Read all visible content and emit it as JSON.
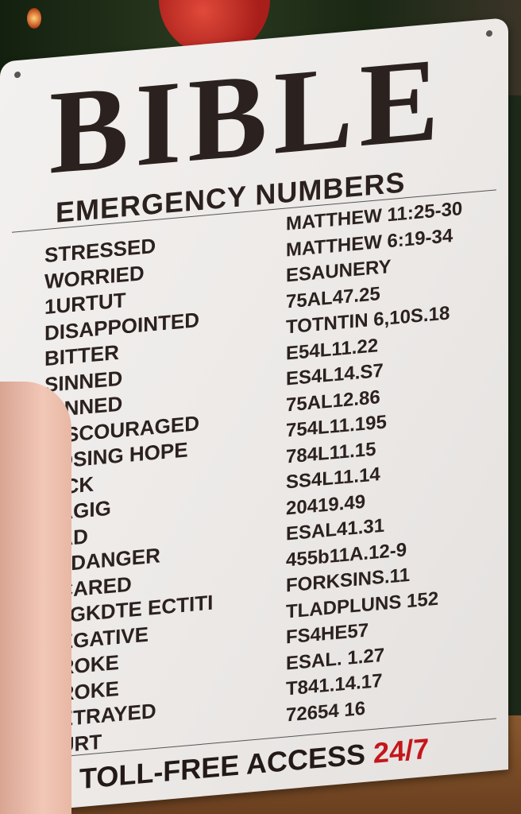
{
  "sign": {
    "title": "BIBLE",
    "subtitle": "EMERGENCY NUMBERS",
    "feelings": [
      "STRESSED",
      "WORRIED",
      "1URTUT",
      "DISAPPOINTED",
      "BITTER",
      "SINNED",
      "SINNED",
      "DISCOURAGED",
      "LOSING HOPE",
      "SICK",
      "SAGIG",
      "SAD",
      "IN DANGER",
      "SCARED",
      "I EGKDTE ECTITI",
      "NEGATIVE",
      "BROKE",
      "BROKE",
      "BETRAYED",
      "HURT"
    ],
    "references": [
      "MATTHEW 11:25-30",
      "MATTHEW 6:19-34",
      "ESAUNERY",
      "75AL47.25",
      "TOTNTIN 6,10S.18",
      "E54L11.22",
      "ES4L14.S7",
      "75AL12.86",
      "754L11.195",
      "784L11.15",
      "SS4L11.14",
      "20419.49",
      "ESAL41.31",
      "455b11A.12-9",
      "FORKSINS.11",
      "TLADPLUNS 152",
      "FS4HE57",
      "ESAL. 1.27",
      "T841.14.17",
      "72654 16"
    ],
    "footer_main": "TOLL-FREE ACCESS",
    "footer_accent": "24/7",
    "accent_color": "#c4161c"
  }
}
